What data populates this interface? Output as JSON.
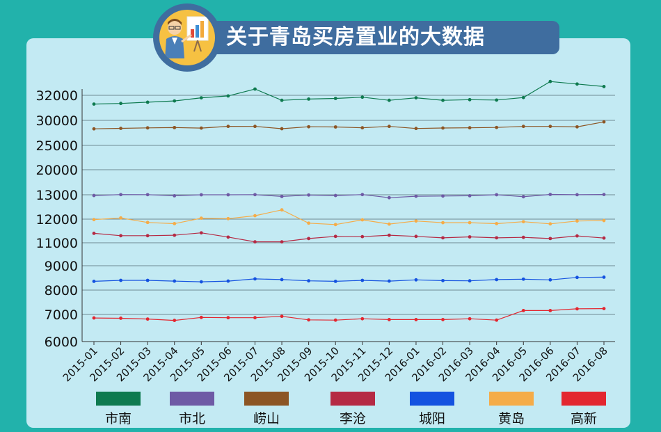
{
  "header": {
    "title": "关于青岛买房置业的大数据"
  },
  "chart_data": {
    "type": "line",
    "title": "",
    "xlabel": "",
    "ylabel": "",
    "grid": true,
    "legend_position": "bottom",
    "y_tick_labels": [
      "6000",
      "7000",
      "8000",
      "9000",
      "11000",
      "12000",
      "13000",
      "20000",
      "25000",
      "30000",
      "32000"
    ],
    "x": [
      "2015-01",
      "2015-02",
      "2015-03",
      "2015-04",
      "2015-05",
      "2015-06",
      "2015-07",
      "2015-08",
      "2015-09",
      "2015-10",
      "2015-11",
      "2015-12",
      "2016-01",
      "2016-02",
      "2016-03",
      "2016-04",
      "2016-05",
      "2016-06",
      "2016-07",
      "2016-08"
    ],
    "series": [
      {
        "name": "市南",
        "color": "#0e7a4f",
        "values": [
          31300,
          31350,
          31450,
          31550,
          31800,
          31950,
          32500,
          31600,
          31700,
          31750,
          31850,
          31600,
          31800,
          31600,
          31650,
          31620,
          31820,
          33100,
          32900,
          32700
        ]
      },
      {
        "name": "市北",
        "color": "#6e5aa5",
        "values": [
          12970,
          13050,
          13030,
          12960,
          13000,
          13000,
          13030,
          12930,
          12990,
          12970,
          13060,
          12880,
          12940,
          12950,
          12960,
          13010,
          12920,
          13090,
          13020,
          13080
        ]
      },
      {
        "name": "崂山",
        "color": "#8c5524",
        "values": [
          28300,
          28400,
          28500,
          28560,
          28460,
          28800,
          28790,
          28330,
          28720,
          28680,
          28520,
          28790,
          28380,
          28470,
          28520,
          28580,
          28790,
          28790,
          28700,
          29700
        ]
      },
      {
        "name": "李沧",
        "color": "#b52a44",
        "values": [
          11400,
          11300,
          11300,
          11320,
          11420,
          11240,
          11040,
          11040,
          11180,
          11270,
          11260,
          11320,
          11270,
          11210,
          11250,
          11210,
          11230,
          11180,
          11290,
          11200
        ]
      },
      {
        "name": "城阳",
        "color": "#1452e0",
        "values": [
          8360,
          8400,
          8400,
          8370,
          8340,
          8370,
          8460,
          8430,
          8380,
          8360,
          8400,
          8370,
          8420,
          8390,
          8380,
          8430,
          8450,
          8420,
          8520,
          8530
        ]
      },
      {
        "name": "黄岛",
        "color": "#f5ac48",
        "values": [
          11980,
          12050,
          11860,
          11810,
          12040,
          12020,
          12140,
          12380,
          11830,
          11770,
          11970,
          11790,
          11920,
          11850,
          11850,
          11810,
          11890,
          11800,
          11920,
          11940
        ]
      },
      {
        "name": "高新",
        "color": "#e3262f",
        "values": [
          6870,
          6860,
          6830,
          6780,
          6890,
          6880,
          6880,
          6930,
          6800,
          6790,
          6840,
          6810,
          6810,
          6810,
          6840,
          6790,
          7160,
          7160,
          7230,
          7240
        ]
      }
    ]
  }
}
